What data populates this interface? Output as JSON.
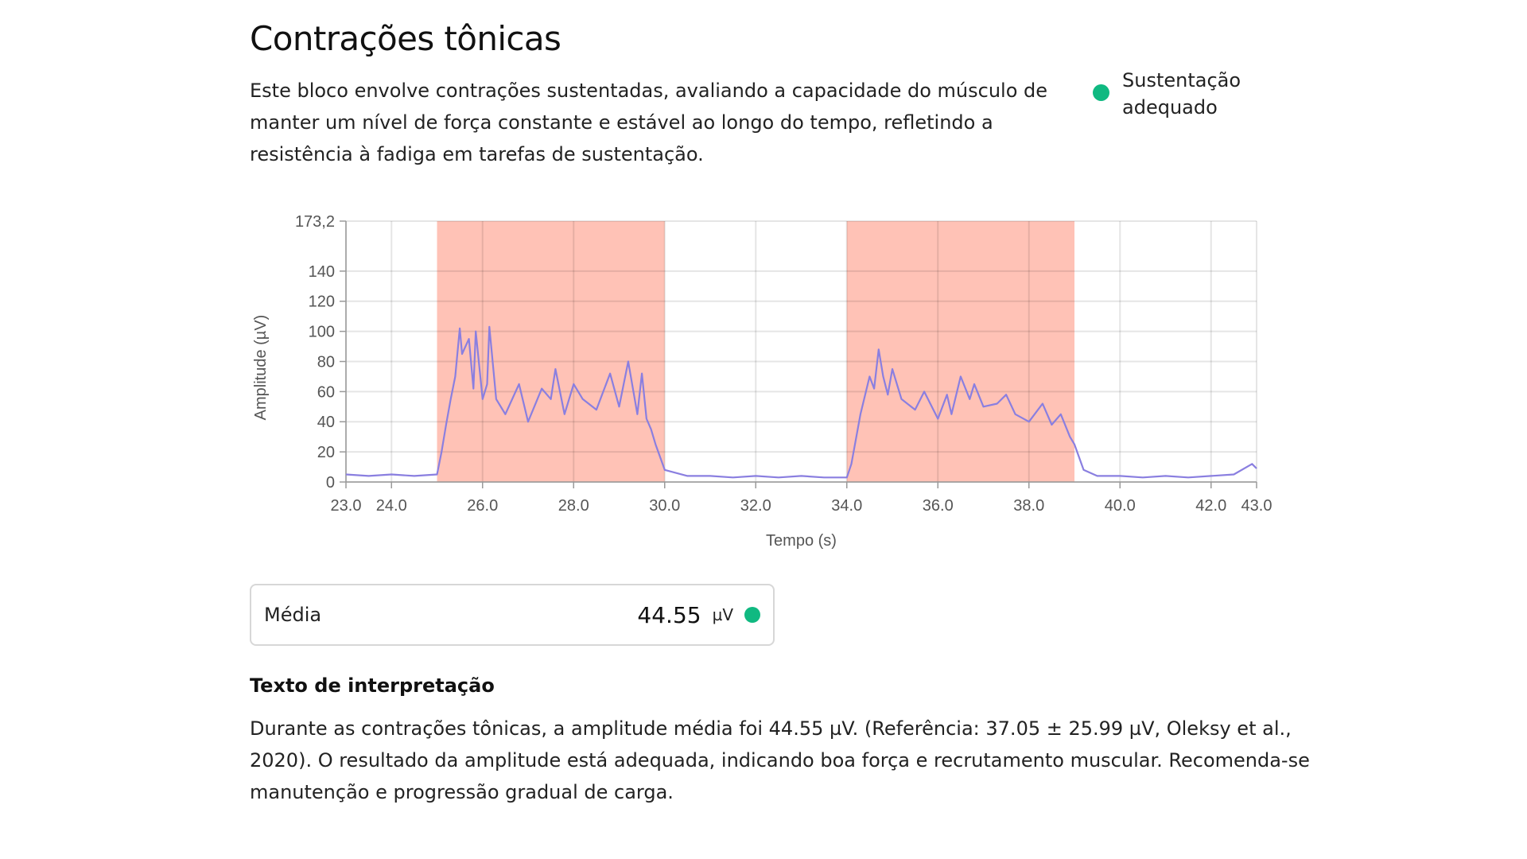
{
  "section": {
    "title": "Contrações tônicas",
    "description": "Este bloco envolve contrações sustentadas, avaliando a capacidade do músculo de manter um nível de força constante e estável ao longo do tempo, refletindo a resistência à fadiga em tarefas de sustentação.",
    "status": {
      "label": "Sustentação adequado",
      "color": "#10b981"
    }
  },
  "chart_data": {
    "type": "line",
    "title": "",
    "xlabel": "Tempo (s)",
    "ylabel": "Amplitude (µV)",
    "xlim": [
      23.0,
      43.0
    ],
    "ylim": [
      0,
      173.2
    ],
    "x_ticks": [
      "23.0",
      "24.0",
      "26.0",
      "28.0",
      "30.0",
      "32.0",
      "34.0",
      "36.0",
      "38.0",
      "40.0",
      "42.0",
      "43.0"
    ],
    "y_ticks": [
      "0",
      "20",
      "40",
      "60",
      "80",
      "100",
      "120",
      "140",
      "173,2"
    ],
    "grid": true,
    "highlight_regions": [
      {
        "x": [
          25.0,
          30.0
        ]
      },
      {
        "x": [
          34.0,
          39.0
        ]
      }
    ],
    "colors": {
      "line": "#8a7fe0",
      "highlight": "#ff8f7a"
    },
    "series": [
      {
        "x": [
          23.0,
          23.5,
          24.0,
          24.5,
          25.0,
          25.1,
          25.2,
          25.3,
          25.4,
          25.5,
          25.55,
          25.7,
          25.8,
          25.85,
          26.0,
          26.1,
          26.15,
          26.3,
          26.5,
          26.8,
          27.0,
          27.3,
          27.5,
          27.6,
          27.8,
          28.0,
          28.2,
          28.5,
          28.8,
          29.0,
          29.2,
          29.4,
          29.5,
          29.6,
          29.7,
          29.8,
          30.0,
          30.5,
          31.0,
          31.5,
          32.0,
          32.5,
          33.0,
          33.5,
          34.0,
          34.1,
          34.3,
          34.5,
          34.6,
          34.7,
          34.8,
          34.9,
          35.0,
          35.2,
          35.5,
          35.7,
          36.0,
          36.2,
          36.3,
          36.5,
          36.7,
          36.8,
          37.0,
          37.3,
          37.5,
          37.7,
          38.0,
          38.3,
          38.5,
          38.7,
          38.9,
          39.0,
          39.2,
          39.5,
          40.0,
          40.5,
          41.0,
          41.5,
          42.0,
          42.5,
          42.9,
          43.0
        ],
        "y": [
          5,
          4,
          5,
          4,
          5,
          20,
          38,
          55,
          70,
          102,
          85,
          95,
          62,
          100,
          55,
          65,
          103,
          55,
          45,
          65,
          40,
          62,
          55,
          75,
          45,
          65,
          55,
          48,
          72,
          50,
          80,
          45,
          72,
          42,
          35,
          25,
          8,
          4,
          4,
          3,
          4,
          3,
          4,
          3,
          3,
          12,
          45,
          70,
          62,
          88,
          70,
          58,
          75,
          55,
          48,
          60,
          42,
          58,
          45,
          70,
          55,
          65,
          50,
          52,
          58,
          45,
          40,
          52,
          38,
          45,
          30,
          25,
          8,
          4,
          4,
          3,
          4,
          3,
          4,
          5,
          12,
          9
        ]
      }
    ]
  },
  "metric": {
    "label": "Média",
    "value": "44.55",
    "unit": "µV",
    "status_color": "#10b981"
  },
  "interpretation": {
    "heading": "Texto de interpretação",
    "text": "Durante as contrações tônicas, a amplitude média foi 44.55 µV. (Referência: 37.05 ± 25.99 µV, Oleksy et al., 2020). O resultado da amplitude está adequada, indicando boa força e recrutamento muscular. Recomenda-se manutenção e progressão gradual de carga."
  }
}
